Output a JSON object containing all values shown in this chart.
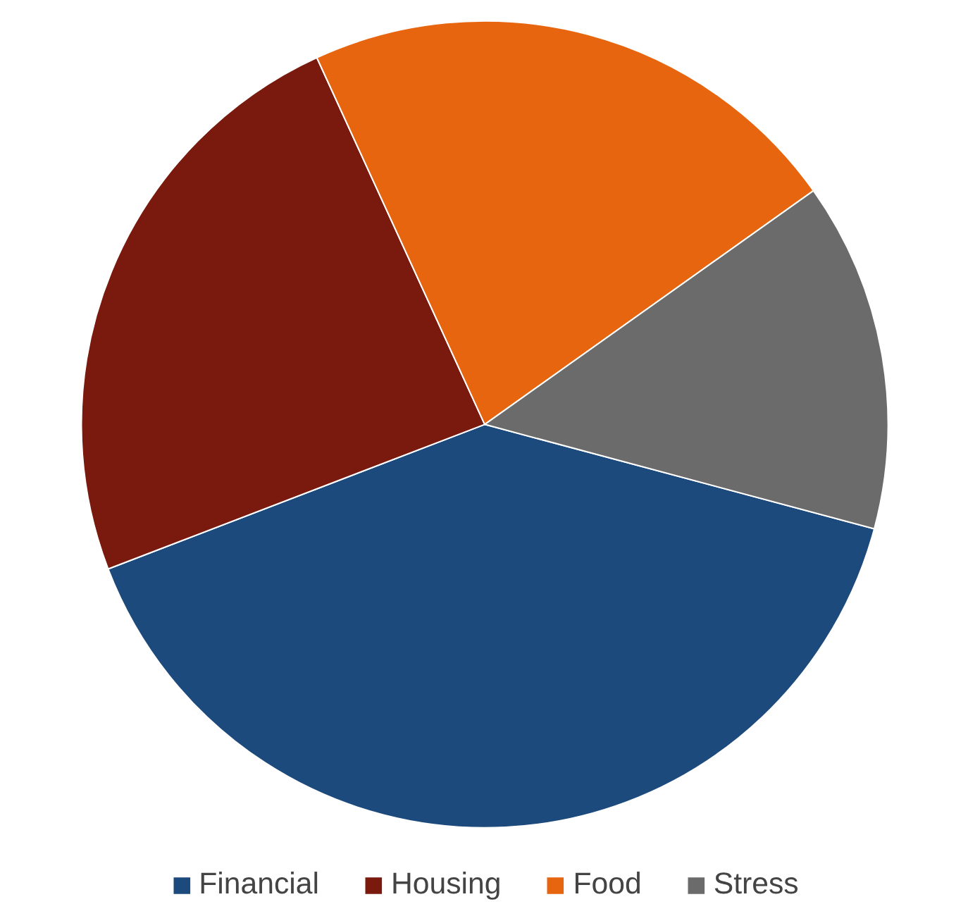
{
  "chart_data": {
    "type": "pie",
    "categories": [
      "Financial",
      "Housing",
      "Food",
      "Stress"
    ],
    "values": [
      40,
      24,
      22,
      14
    ],
    "colors": [
      "#1d4a7c",
      "#7a1a0e",
      "#e8650f",
      "#6b6b6b"
    ],
    "legend": "bottom"
  }
}
